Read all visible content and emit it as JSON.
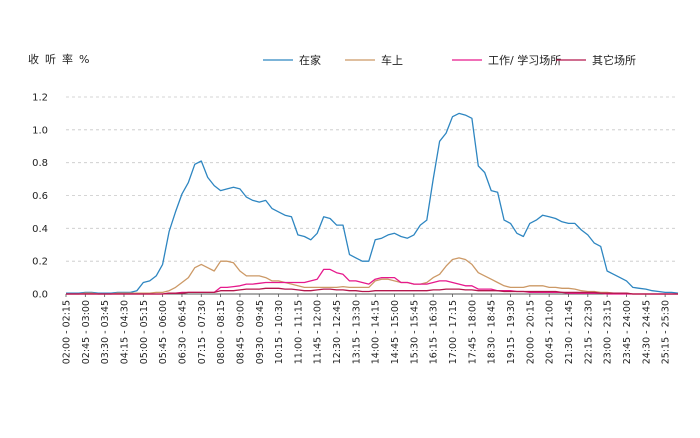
{
  "chart_data": {
    "type": "line",
    "ylabel": "收听率%",
    "xlabel": "",
    "title": "",
    "ylim": [
      0,
      1.2
    ],
    "yticks": [
      "0.0",
      "0.2",
      "0.4",
      "0.6",
      "0.8",
      "1.0",
      "1.2"
    ],
    "grid": "horizontal dashed",
    "legend_position": "top",
    "x": [
      "02:00",
      "02:15",
      "02:30",
      "02:45",
      "03:00",
      "03:15",
      "03:30",
      "03:45",
      "04:00",
      "04:15",
      "04:30",
      "04:45",
      "05:00",
      "05:15",
      "05:30",
      "05:45",
      "06:00",
      "06:15",
      "06:30",
      "06:45",
      "07:00",
      "07:15",
      "07:30",
      "07:45",
      "08:00",
      "08:15",
      "08:30",
      "08:45",
      "09:00",
      "09:15",
      "09:30",
      "09:45",
      "10:00",
      "10:15",
      "10:30",
      "10:45",
      "11:00",
      "11:15",
      "11:30",
      "11:45",
      "12:00",
      "12:15",
      "12:30",
      "12:45",
      "13:00",
      "13:15",
      "13:30",
      "13:45",
      "14:00",
      "14:15",
      "14:30",
      "14:45",
      "15:00",
      "15:15",
      "15:30",
      "15:45",
      "16:00",
      "16:15",
      "16:30",
      "16:45",
      "17:00",
      "17:15",
      "17:30",
      "17:45",
      "18:00",
      "18:15",
      "18:30",
      "18:45",
      "19:00",
      "19:15",
      "19:30",
      "19:45",
      "20:00",
      "20:15",
      "20:30",
      "20:45",
      "21:00",
      "21:15",
      "21:30",
      "21:45",
      "22:00",
      "22:15",
      "22:30",
      "22:45",
      "23:00",
      "23:15",
      "23:30",
      "23:45",
      "24:00",
      "24:15",
      "24:30",
      "24:45",
      "25:00",
      "25:15",
      "25:30",
      "25:45"
    ],
    "x_tick_labels": [
      "02:00 - 02:15",
      "02:45 - 03:00",
      "03:30 - 03:45",
      "04:15 - 04:30",
      "05:00 - 05:15",
      "05:45 - 06:00",
      "06:30 - 06:45",
      "07:15 - 07:30",
      "08:00 - 08:15",
      "08:45 - 09:00",
      "09:30 - 09:45",
      "10:15 - 10:30",
      "11:00 - 11:15",
      "11:45 - 12:00",
      "12:30 - 12:45",
      "13:15 - 13:30",
      "14:00 - 14:15",
      "14:45 - 15:00",
      "15:30 - 15:45",
      "16:15 - 16:30",
      "17:00 - 17:15",
      "17:45 - 18:00",
      "18:30 - 18:45",
      "19:15 - 19:30",
      "20:00 - 20:15",
      "20:45 - 21:00",
      "21:30 - 21:45",
      "22:15 - 22:30",
      "23:00 - 23:15",
      "23:45 - 24:00",
      "24:30 - 24:45",
      "25:15 - 25:30"
    ],
    "series": [
      {
        "name": "在家",
        "color": "#2e86c1",
        "values": [
          0.005,
          0.005,
          0.005,
          0.01,
          0.01,
          0.005,
          0.005,
          0.005,
          0.01,
          0.01,
          0.01,
          0.02,
          0.07,
          0.08,
          0.11,
          0.18,
          0.38,
          0.5,
          0.61,
          0.68,
          0.79,
          0.81,
          0.71,
          0.66,
          0.63,
          0.64,
          0.65,
          0.64,
          0.59,
          0.57,
          0.56,
          0.57,
          0.52,
          0.5,
          0.48,
          0.47,
          0.36,
          0.35,
          0.33,
          0.37,
          0.47,
          0.46,
          0.42,
          0.42,
          0.24,
          0.22,
          0.2,
          0.2,
          0.33,
          0.34,
          0.36,
          0.37,
          0.35,
          0.34,
          0.36,
          0.42,
          0.45,
          0.7,
          0.93,
          0.98,
          1.08,
          1.1,
          1.09,
          1.07,
          0.78,
          0.74,
          0.63,
          0.62,
          0.45,
          0.43,
          0.37,
          0.35,
          0.43,
          0.45,
          0.48,
          0.47,
          0.46,
          0.44,
          0.43,
          0.43,
          0.39,
          0.36,
          0.31,
          0.29,
          0.14,
          0.12,
          0.1,
          0.08,
          0.04,
          0.035,
          0.03,
          0.02,
          0.015,
          0.01,
          0.01,
          0.005
        ]
      },
      {
        "name": "车上",
        "color": "#cc9966",
        "values": [
          0,
          0,
          0,
          0.005,
          0.005,
          0,
          0,
          0,
          0.005,
          0.005,
          0.005,
          0.005,
          0.005,
          0.005,
          0.01,
          0.01,
          0.02,
          0.04,
          0.07,
          0.1,
          0.16,
          0.18,
          0.16,
          0.14,
          0.2,
          0.2,
          0.19,
          0.14,
          0.11,
          0.11,
          0.11,
          0.1,
          0.08,
          0.08,
          0.07,
          0.06,
          0.05,
          0.04,
          0.04,
          0.04,
          0.04,
          0.04,
          0.04,
          0.045,
          0.04,
          0.04,
          0.04,
          0.04,
          0.08,
          0.09,
          0.09,
          0.08,
          0.07,
          0.07,
          0.06,
          0.06,
          0.07,
          0.1,
          0.12,
          0.17,
          0.21,
          0.22,
          0.21,
          0.18,
          0.13,
          0.11,
          0.09,
          0.07,
          0.05,
          0.04,
          0.04,
          0.04,
          0.05,
          0.05,
          0.05,
          0.04,
          0.04,
          0.035,
          0.035,
          0.03,
          0.02,
          0.015,
          0.015,
          0.01,
          0.01,
          0.005,
          0.005,
          0.005,
          0,
          0,
          0,
          0,
          0,
          0,
          0,
          0
        ]
      },
      {
        "name": "工作/ 学习场所",
        "color": "#e6198c",
        "values": [
          0,
          0,
          0,
          0,
          0,
          0,
          0,
          0,
          0,
          0,
          0,
          0,
          0,
          0,
          0,
          0,
          0.005,
          0.005,
          0.01,
          0.01,
          0.01,
          0.01,
          0.01,
          0.01,
          0.04,
          0.04,
          0.045,
          0.05,
          0.06,
          0.06,
          0.065,
          0.07,
          0.07,
          0.07,
          0.07,
          0.07,
          0.07,
          0.07,
          0.08,
          0.09,
          0.15,
          0.15,
          0.13,
          0.12,
          0.08,
          0.08,
          0.07,
          0.06,
          0.09,
          0.1,
          0.1,
          0.1,
          0.07,
          0.07,
          0.06,
          0.06,
          0.06,
          0.07,
          0.08,
          0.08,
          0.07,
          0.06,
          0.05,
          0.05,
          0.03,
          0.03,
          0.03,
          0.02,
          0.02,
          0.02,
          0.015,
          0.015,
          0.01,
          0.01,
          0.01,
          0.01,
          0.01,
          0.01,
          0.005,
          0.005,
          0.005,
          0.005,
          0.005,
          0.005,
          0,
          0,
          0,
          0,
          0,
          0,
          0,
          0,
          0,
          0,
          0,
          0
        ]
      },
      {
        "name": "其它场所",
        "color": "#b5174d",
        "values": [
          0,
          0,
          0,
          0,
          0,
          0,
          0,
          0,
          0,
          0,
          0,
          0,
          0,
          0,
          0,
          0,
          0.005,
          0.005,
          0.005,
          0.01,
          0.01,
          0.01,
          0.01,
          0.01,
          0.02,
          0.02,
          0.02,
          0.025,
          0.03,
          0.03,
          0.03,
          0.035,
          0.035,
          0.035,
          0.03,
          0.03,
          0.025,
          0.02,
          0.02,
          0.025,
          0.03,
          0.03,
          0.025,
          0.025,
          0.02,
          0.02,
          0.015,
          0.015,
          0.02,
          0.02,
          0.02,
          0.02,
          0.02,
          0.02,
          0.02,
          0.02,
          0.02,
          0.025,
          0.025,
          0.03,
          0.03,
          0.03,
          0.025,
          0.025,
          0.02,
          0.02,
          0.02,
          0.02,
          0.015,
          0.015,
          0.015,
          0.015,
          0.015,
          0.015,
          0.015,
          0.015,
          0.015,
          0.01,
          0.01,
          0.01,
          0.01,
          0.01,
          0.01,
          0.005,
          0.005,
          0.005,
          0.005,
          0.005,
          0,
          0,
          0,
          0,
          0,
          0,
          0,
          0
        ]
      }
    ]
  }
}
